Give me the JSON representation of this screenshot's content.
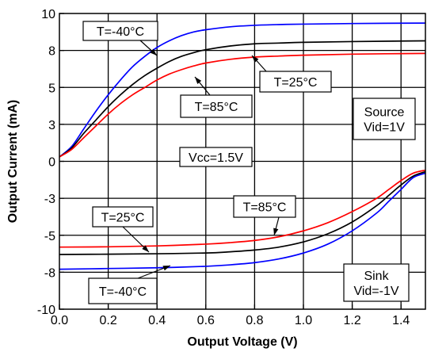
{
  "chart_data": {
    "type": "line",
    "title": "",
    "xlabel": "Output Voltage (V)",
    "ylabel": "Output Current (mA)",
    "xlim": [
      0.0,
      1.5
    ],
    "ylim": [
      -10,
      10
    ],
    "grid": true,
    "x_ticks": [
      "0.0",
      "0.2",
      "0.4",
      "0.6",
      "0.8",
      "1.0",
      "1.2",
      "1.4"
    ],
    "x_tick_values": [
      0.0,
      0.2,
      0.4,
      0.6,
      0.8,
      1.0,
      1.2,
      1.4
    ],
    "y_ticks": [
      "10",
      "8",
      "5",
      "3",
      "0",
      "-3",
      "-5",
      "-8",
      "-10"
    ],
    "y_tick_values": [
      10,
      7.5,
      5,
      2.5,
      0,
      -2.5,
      -5,
      -7.5,
      -10
    ],
    "series": [
      {
        "color": "#0000ff",
        "x": [
          0.0,
          0.05,
          0.1,
          0.15,
          0.2,
          0.25,
          0.3,
          0.35,
          0.4,
          0.45,
          0.5,
          0.55,
          0.6,
          0.7,
          0.8,
          0.9,
          1.0,
          1.2,
          1.5
        ],
        "y": [
          0.3,
          1.0,
          2.2,
          3.4,
          4.5,
          5.5,
          6.4,
          7.1,
          7.7,
          8.15,
          8.5,
          8.75,
          8.9,
          9.1,
          9.2,
          9.25,
          9.28,
          9.32,
          9.35
        ]
      },
      {
        "color": "#000000",
        "x": [
          0.0,
          0.05,
          0.1,
          0.15,
          0.2,
          0.25,
          0.3,
          0.35,
          0.4,
          0.45,
          0.5,
          0.55,
          0.6,
          0.7,
          0.8,
          0.9,
          1.0,
          1.2,
          1.5
        ],
        "y": [
          0.3,
          0.9,
          1.9,
          2.8,
          3.7,
          4.5,
          5.2,
          5.8,
          6.3,
          6.75,
          7.1,
          7.35,
          7.55,
          7.8,
          7.95,
          8.0,
          8.05,
          8.1,
          8.15
        ]
      },
      {
        "color": "#ff0000",
        "x": [
          0.0,
          0.05,
          0.1,
          0.15,
          0.2,
          0.25,
          0.3,
          0.35,
          0.4,
          0.45,
          0.5,
          0.55,
          0.6,
          0.7,
          0.8,
          0.9,
          1.0,
          1.2,
          1.5
        ],
        "y": [
          0.3,
          0.8,
          1.6,
          2.4,
          3.2,
          3.9,
          4.5,
          5.0,
          5.5,
          5.9,
          6.2,
          6.45,
          6.65,
          6.9,
          7.05,
          7.12,
          7.18,
          7.25,
          7.3
        ]
      },
      {
        "color": "#0000ff",
        "x": [
          0.0,
          0.2,
          0.4,
          0.6,
          0.7,
          0.8,
          0.9,
          1.0,
          1.1,
          1.2,
          1.3,
          1.35,
          1.4,
          1.45,
          1.5
        ],
        "y": [
          -7.3,
          -7.25,
          -7.2,
          -7.1,
          -7.0,
          -6.85,
          -6.6,
          -6.2,
          -5.6,
          -4.7,
          -3.5,
          -2.7,
          -1.9,
          -1.1,
          -0.8
        ]
      },
      {
        "color": "#000000",
        "x": [
          0.0,
          0.2,
          0.4,
          0.6,
          0.7,
          0.8,
          0.9,
          1.0,
          1.1,
          1.2,
          1.3,
          1.35,
          1.4,
          1.45,
          1.5
        ],
        "y": [
          -6.3,
          -6.28,
          -6.25,
          -6.2,
          -6.12,
          -6.0,
          -5.8,
          -5.45,
          -4.9,
          -4.1,
          -3.0,
          -2.3,
          -1.6,
          -1.0,
          -0.7
        ]
      },
      {
        "color": "#ff0000",
        "x": [
          0.0,
          0.2,
          0.4,
          0.6,
          0.7,
          0.8,
          0.9,
          1.0,
          1.1,
          1.2,
          1.3,
          1.35,
          1.4,
          1.45,
          1.5
        ],
        "y": [
          -5.8,
          -5.78,
          -5.72,
          -5.6,
          -5.5,
          -5.35,
          -5.1,
          -4.7,
          -4.15,
          -3.4,
          -2.5,
          -1.9,
          -1.3,
          -0.8,
          -0.6
        ]
      }
    ],
    "annotations": [
      {
        "label": "T=-40°C"
      },
      {
        "label": "T=25°C"
      },
      {
        "label": "T=85°C"
      },
      {
        "label": "Source\nVid=1V"
      },
      {
        "label": "Vcc=1.5V"
      },
      {
        "label": "T=85°C"
      },
      {
        "label": "T=25°C"
      },
      {
        "label": "Sink\nVid=-1V"
      },
      {
        "label": "T=-40°C"
      }
    ]
  }
}
